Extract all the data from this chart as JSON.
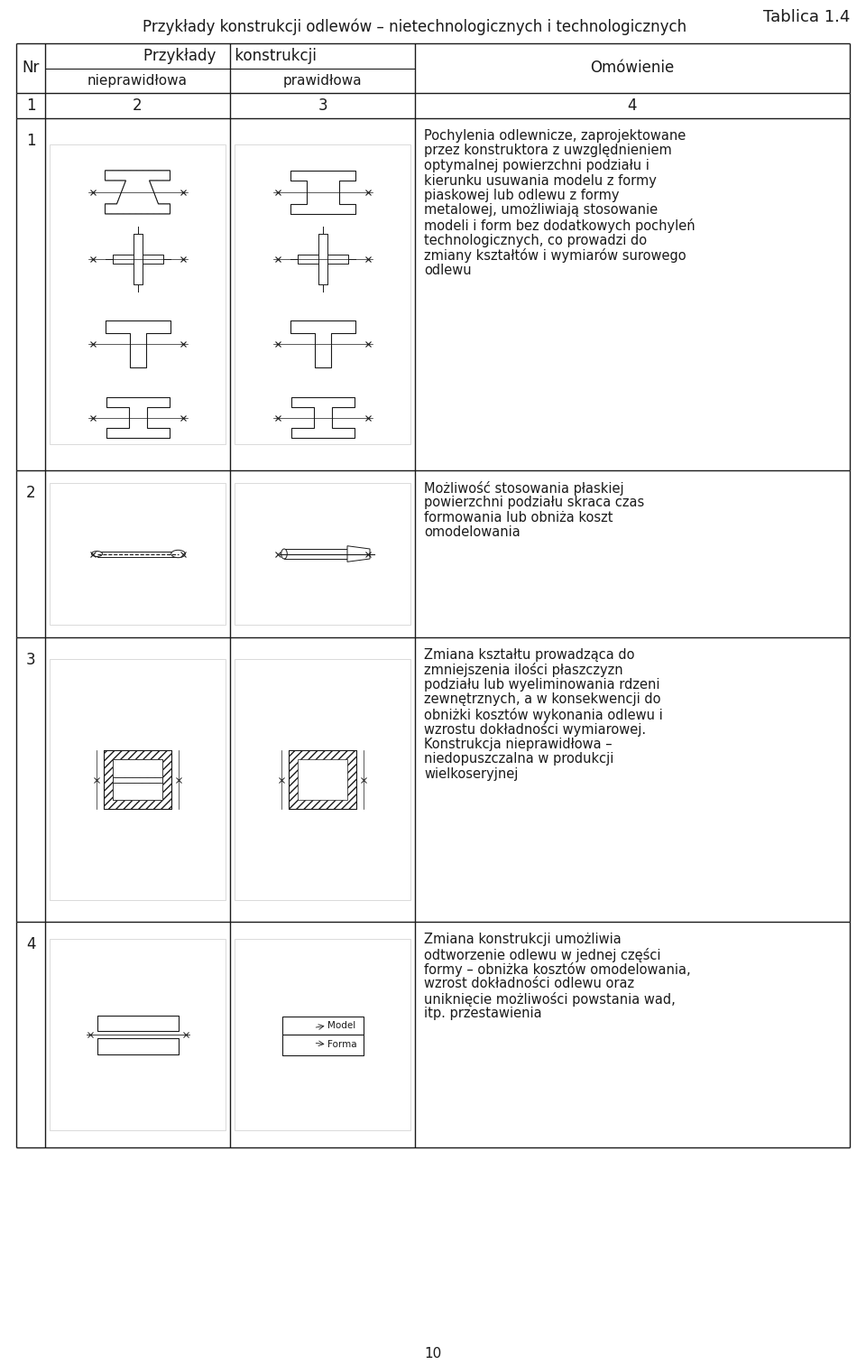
{
  "title_right": "Tablica 1.4",
  "title_main": "Przykłady konstrukcji odlewów – nietechnologicznych i technologicznych",
  "col_headers": [
    "Nr",
    "Przykłady konstrukcji",
    "Omówienie"
  ],
  "sub_headers": [
    "nieprawidłowa",
    "prawidłowa"
  ],
  "row_numbers": [
    "1",
    "2",
    "3",
    "4"
  ],
  "col_nums": [
    "1",
    "2",
    "3",
    "4"
  ],
  "bg_color": "#ffffff",
  "text_color": "#1a1a1a",
  "line_color": "#1a1a1a",
  "font_size_title": 13,
  "font_size_header": 12,
  "font_size_body": 11,
  "row1_text": "Pochylenia odlewnicze, zaprojektowane przez konstruktora z uwzględnieniem optymalnej powierzchni podziału i kierunku usuwania modelu z formy piaskowej lub odlewu z formy metalowej, umożliwiają stosowanie modeli i form bez dodatkowych pochyleń technologicznych, co prowadzi do zmiany kształtów i wymiarów surowego odlewu",
  "row2_text": "Możliwość stosowania płaskiej powierzchni podziału skraca czas formowania lub obniża koszt omodelowania",
  "row3_text": "Zmiana kształtu prowadząca do zmniejszenia ilości płaszczyzn podziału lub wyeliminowania rdzeni zewnętrznych, a w konsekwencji do obniżki kosztów wykonania odlewu i wzrostu dokładności wymiarowej. Konstrukcja nieprawidłowa – niedopuszczalna w produkcji wielkoseryjnej",
  "row4_text": "Zmiana konstrukcji umożliwia odtworzenie odlewu w jednej części formy – obniżka kosztów omodelowania, wzrost dokładności odlewu oraz uniknięcie możliwości powstania wad, itp. przestawienia",
  "page_num": "10"
}
